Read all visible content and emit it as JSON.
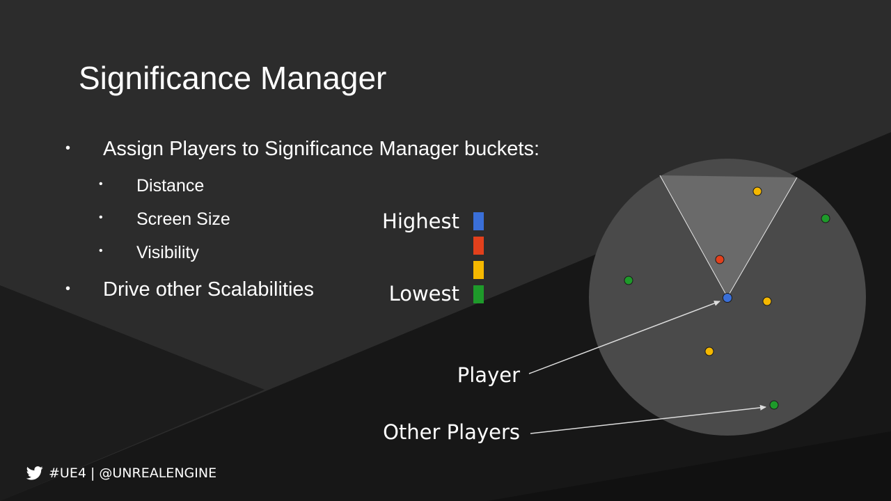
{
  "slide": {
    "title": "Significance Manager",
    "bullets": [
      "Assign Players to Significance Manager buckets:",
      "Drive other Scalabilities"
    ],
    "sub_bullets": [
      "Distance",
      "Screen Size",
      "Visibility"
    ],
    "bullet_char": "•"
  },
  "legend": {
    "highest_label": "Highest",
    "lowest_label": "Lowest",
    "colors": [
      "#3a6fd8",
      "#e2401c",
      "#f5b800",
      "#1e9a2a"
    ]
  },
  "diagram": {
    "player_label": "Player",
    "other_players_label": "Other Players",
    "circle_color": "#4a4a4a",
    "cone_color": "#6a6a6a",
    "player_color": "#3a6fd8",
    "others": [
      {
        "bucket": "yellow"
      },
      {
        "bucket": "green"
      },
      {
        "bucket": "red"
      },
      {
        "bucket": "green"
      },
      {
        "bucket": "yellow"
      },
      {
        "bucket": "yellow"
      },
      {
        "bucket": "green"
      }
    ]
  },
  "footer": {
    "text": "#UE4 | @UNREALENGINE",
    "icon": "twitter-icon"
  }
}
